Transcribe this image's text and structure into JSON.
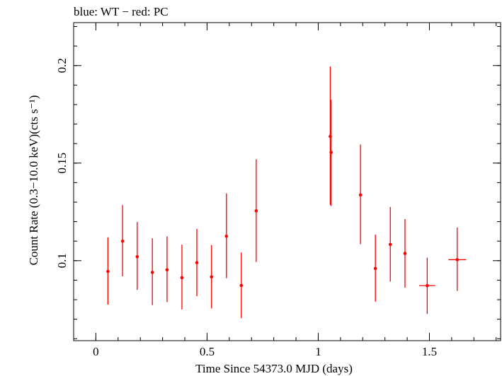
{
  "chart_data": {
    "type": "scatter",
    "title": "blue: WT − red: PC",
    "xlabel": "Time Since 54373.0 MJD (days)",
    "ylabel": "Count Rate (0.3−10.0 keV)(cts s⁻¹)",
    "xlim": [
      -0.1,
      1.82
    ],
    "ylim": [
      0.059,
      0.222
    ],
    "x_ticks": [
      0,
      0.5,
      1,
      1.5
    ],
    "x_tick_labels": [
      "0",
      "0.5",
      "1",
      "1.5"
    ],
    "y_ticks": [
      0.1,
      0.15,
      0.2
    ],
    "y_tick_labels": [
      "0.1",
      "0.15",
      "0.2"
    ],
    "x_minor_step": 0.1,
    "y_minor_step": 0.01,
    "grid": false,
    "legend": "none",
    "series": [
      {
        "color": "#ff0000",
        "points": [
          {
            "x": 0.054,
            "y": 0.0945,
            "ylo": 0.0775,
            "yhi": 0.112,
            "xerr": 0
          },
          {
            "x": 0.12,
            "y": 0.11,
            "ylo": 0.092,
            "yhi": 0.1285,
            "xerr": 0
          },
          {
            "x": 0.186,
            "y": 0.102,
            "ylo": 0.085,
            "yhi": 0.1198,
            "xerr": 0
          },
          {
            "x": 0.254,
            "y": 0.094,
            "ylo": 0.0772,
            "yhi": 0.1115,
            "xerr": 0
          },
          {
            "x": 0.32,
            "y": 0.0953,
            "ylo": 0.0788,
            "yhi": 0.1125,
            "xerr": 0
          },
          {
            "x": 0.387,
            "y": 0.0913,
            "ylo": 0.075,
            "yhi": 0.1082,
            "xerr": 0
          },
          {
            "x": 0.454,
            "y": 0.099,
            "ylo": 0.0818,
            "yhi": 0.1163,
            "xerr": 0
          },
          {
            "x": 0.52,
            "y": 0.0917,
            "ylo": 0.0755,
            "yhi": 0.108,
            "xerr": 0
          },
          {
            "x": 0.587,
            "y": 0.1125,
            "ylo": 0.091,
            "yhi": 0.1345,
            "xerr": 0
          },
          {
            "x": 0.654,
            "y": 0.0873,
            "ylo": 0.0705,
            "yhi": 0.1042,
            "xerr": 0
          },
          {
            "x": 0.721,
            "y": 0.1255,
            "ylo": 0.0993,
            "yhi": 0.152,
            "xerr": 0
          },
          {
            "x": 1.054,
            "y": 0.1637,
            "ylo": 0.1285,
            "yhi": 0.1995,
            "xerr": 0
          },
          {
            "x": 1.058,
            "y": 0.1555,
            "ylo": 0.128,
            "yhi": 0.1825,
            "xerr": 0
          },
          {
            "x": 1.19,
            "y": 0.1337,
            "ylo": 0.1085,
            "yhi": 0.1595,
            "xerr": 0
          },
          {
            "x": 1.257,
            "y": 0.096,
            "ylo": 0.079,
            "yhi": 0.1133,
            "xerr": 0
          },
          {
            "x": 1.324,
            "y": 0.1083,
            "ylo": 0.0893,
            "yhi": 0.1275,
            "xerr": 0
          },
          {
            "x": 1.39,
            "y": 0.1037,
            "ylo": 0.0862,
            "yhi": 0.1213,
            "xerr": 0
          },
          {
            "x": 1.49,
            "y": 0.0872,
            "ylo": 0.0727,
            "yhi": 0.1015,
            "xerr": 0.036
          },
          {
            "x": 1.625,
            "y": 0.1005,
            "ylo": 0.0845,
            "yhi": 0.117,
            "xerr": 0.04
          }
        ]
      }
    ]
  }
}
